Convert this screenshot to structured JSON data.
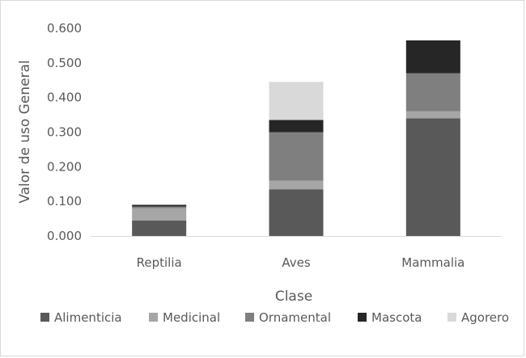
{
  "chart_data": {
    "type": "bar",
    "stacked": true,
    "title": "",
    "xlabel": "Clase",
    "ylabel": "Valor de uso General",
    "categories": [
      "Reptilia",
      "Aves",
      "Mammalia"
    ],
    "ylim": [
      0,
      0.6
    ],
    "yticks": [
      "0.000",
      "0.100",
      "0.200",
      "0.300",
      "0.400",
      "0.500",
      "0.600"
    ],
    "grid": false,
    "legend_position": "bottom",
    "series": [
      {
        "name": "Alimenticia",
        "color": "#595959",
        "values": [
          0.045,
          0.135,
          0.34
        ]
      },
      {
        "name": "Medicinal",
        "color": "#a6a6a6",
        "values": [
          0.035,
          0.025,
          0.02
        ]
      },
      {
        "name": "Ornamental",
        "color": "#7f7f7f",
        "values": [
          0.005,
          0.14,
          0.11
        ]
      },
      {
        "name": "Mascota",
        "color": "#262626",
        "values": [
          0.005,
          0.035,
          0.095
        ]
      },
      {
        "name": "Agorero",
        "color": "#d9d9d9",
        "values": [
          0.0,
          0.11,
          0.0
        ]
      }
    ]
  }
}
